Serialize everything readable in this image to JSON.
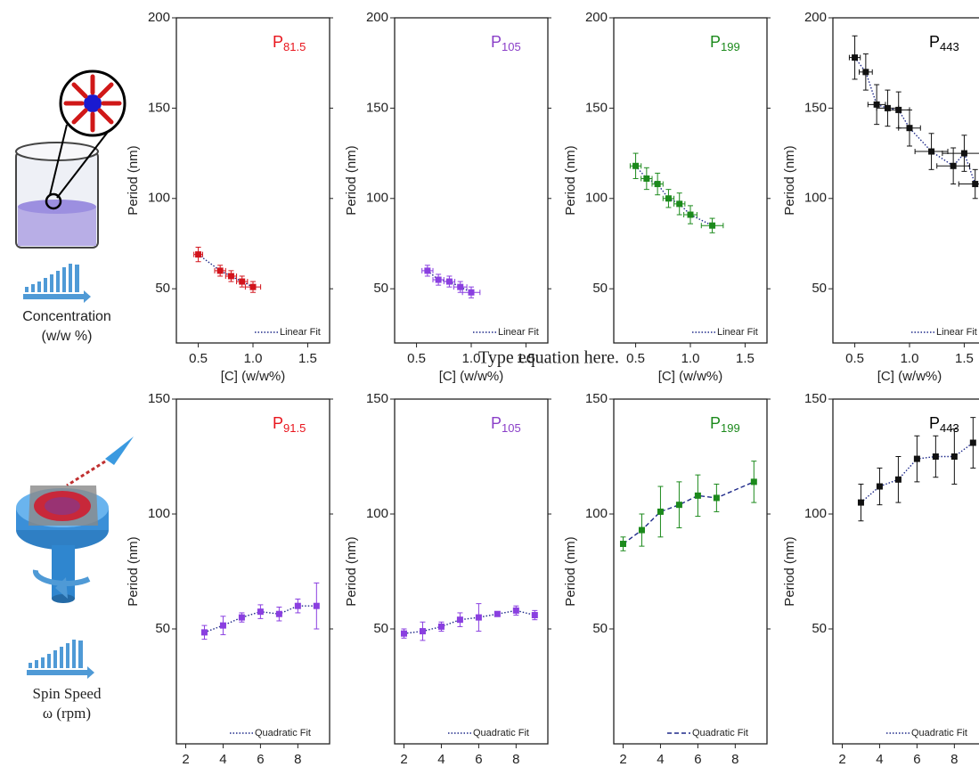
{
  "chart_data": [
    {
      "type": "scatter",
      "title": [
        "P",
        "81.5"
      ],
      "title_color": "#e8141c",
      "color": "#d2141c",
      "x_label": "[C] (w/w%)",
      "y_label": "Period (nm)",
      "fit_label": "Linear Fit",
      "fit_style": "dotted",
      "fit_color": "#1f2a8a",
      "x": [
        0.5,
        0.7,
        0.8,
        0.9,
        1.0
      ],
      "values": [
        69,
        60,
        57,
        54,
        51
      ],
      "xerr": [
        0.04,
        0.05,
        0.05,
        0.05,
        0.07
      ],
      "yerr": [
        4,
        3,
        3,
        3,
        3
      ],
      "xlim": [
        0.3,
        1.7
      ],
      "xticks": [
        0.5,
        {
          "value": 1,
          "label": "1.0"
        },
        1.5
      ],
      "ylim": [
        20,
        200
      ],
      "yticks": [
        50,
        100,
        150,
        200
      ]
    },
    {
      "type": "scatter",
      "title": [
        "P",
        "105"
      ],
      "title_color": "#8a3fc8",
      "color": "#8a3fe0",
      "x_label": "[C] (w/w%)",
      "y_label": "Period (nm)",
      "fit_label": "Linear Fit",
      "fit_style": "dotted",
      "fit_color": "#1f2a8a",
      "x": [
        0.6,
        0.7,
        0.8,
        0.9,
        1.0
      ],
      "values": [
        60,
        55,
        54,
        51,
        48
      ],
      "xerr": [
        0.05,
        0.05,
        0.05,
        0.06,
        0.08
      ],
      "yerr": [
        3,
        3,
        3,
        3,
        3
      ],
      "xlim": [
        0.3,
        1.7
      ],
      "xticks": [
        0.5,
        {
          "value": 1,
          "label": "1.0"
        },
        1.5
      ],
      "ylim": [
        20,
        200
      ],
      "yticks": [
        50,
        100,
        150,
        200
      ]
    },
    {
      "type": "scatter",
      "title": [
        "P",
        "199"
      ],
      "title_color": "#1c8a1c",
      "color": "#1c8a1c",
      "x_label": "[C] (w/w%)",
      "y_label": "Period (nm)",
      "fit_label": "Linear Fit",
      "fit_style": "dotted",
      "fit_color": "#1f2a8a",
      "x": [
        0.5,
        0.6,
        0.7,
        0.8,
        0.9,
        1.0,
        1.2
      ],
      "values": [
        118,
        111,
        108,
        100,
        97,
        91,
        85
      ],
      "xerr": [
        0.05,
        0.05,
        0.05,
        0.05,
        0.05,
        0.06,
        0.1
      ],
      "yerr": [
        7,
        6,
        6,
        5,
        6,
        5,
        4
      ],
      "xlim": [
        0.3,
        1.7
      ],
      "xticks": [
        0.5,
        {
          "value": 1,
          "label": "1.0"
        },
        1.5
      ],
      "ylim": [
        20,
        200
      ],
      "yticks": [
        50,
        100,
        150,
        200
      ]
    },
    {
      "type": "scatter",
      "title": [
        "P",
        "443"
      ],
      "title_color": "#000000",
      "color": "#111111",
      "x_label": "[C] (w/w%)",
      "y_label": "Period (nm)",
      "fit_label": "Linear Fit",
      "fit_style": "dotted",
      "fit_color": "#1f2a8a",
      "x": [
        0.5,
        0.6,
        0.7,
        0.8,
        0.9,
        1.0,
        1.2,
        1.4,
        1.5,
        1.6
      ],
      "values": [
        178,
        170,
        152,
        150,
        149,
        139,
        126,
        118,
        125,
        108
      ],
      "xerr": [
        0.05,
        0.06,
        0.08,
        0.1,
        0.1,
        0.1,
        0.15,
        0.15,
        0.2,
        0.15
      ],
      "yerr": [
        12,
        10,
        11,
        10,
        10,
        10,
        10,
        10,
        10,
        8
      ],
      "xlim": [
        0.3,
        1.7
      ],
      "xticks": [
        0.5,
        {
          "value": 1,
          "label": "1.0"
        },
        1.5
      ],
      "ylim": [
        20,
        200
      ],
      "yticks": [
        50,
        100,
        150,
        200
      ]
    },
    {
      "type": "scatter",
      "title": [
        "P",
        "91.5"
      ],
      "title_color": "#e8141c",
      "color": "#8a3fe0",
      "x_label": "ω (rpm)",
      "y_label": "Period (nm)",
      "fit_label": "Quadratic Fit",
      "fit_style": "dotted",
      "fit_color": "#1f2a8a",
      "x": [
        3,
        4,
        5,
        6,
        7,
        8,
        9
      ],
      "values": [
        48.5,
        51.5,
        55,
        57.5,
        56.5,
        60,
        60
      ],
      "yerr": [
        3,
        4,
        2,
        3,
        3,
        3,
        10
      ],
      "xlim": [
        1.5,
        9.7
      ],
      "xticks": [
        2,
        4,
        6,
        8
      ],
      "ylim": [
        0,
        150
      ],
      "yticks": [
        50,
        100,
        150
      ]
    },
    {
      "type": "scatter",
      "title": [
        "P",
        "105"
      ],
      "title_color": "#8a3fc8",
      "color": "#8a3fe0",
      "x_label": "ω (rpm)",
      "y_label": "Period (nm)",
      "fit_label": "Quadratic Fit",
      "fit_style": "dotted",
      "fit_color": "#1f2a8a",
      "x": [
        2,
        3,
        4,
        5,
        6,
        7,
        8,
        9
      ],
      "values": [
        48,
        49,
        51,
        54,
        55,
        56.5,
        58,
        56
      ],
      "yerr": [
        2,
        4,
        2,
        3,
        6,
        1,
        2,
        2
      ],
      "xlim": [
        1.5,
        9.7
      ],
      "xticks": [
        2,
        4,
        6,
        8
      ],
      "ylim": [
        0,
        150
      ],
      "yticks": [
        50,
        100,
        150
      ]
    },
    {
      "type": "scatter",
      "title": [
        "P",
        "199"
      ],
      "title_color": "#1c8a1c",
      "color": "#1c8a1c",
      "x_label": "ω (rpm)",
      "y_label": "Period (nm)",
      "fit_label": "Quadratic Fit",
      "fit_style": "dashed",
      "fit_color": "#1f2a8a",
      "x": [
        2,
        3,
        4,
        5,
        6,
        7,
        9
      ],
      "values": [
        87,
        93,
        101,
        104,
        108,
        107,
        114
      ],
      "yerr": [
        3,
        7,
        11,
        10,
        9,
        6,
        9
      ],
      "xlim": [
        1.5,
        9.7
      ],
      "xticks": [
        2,
        4,
        6,
        8
      ],
      "ylim": [
        0,
        150
      ],
      "yticks": [
        50,
        100,
        150
      ]
    },
    {
      "type": "scatter",
      "title": [
        "P",
        "443"
      ],
      "title_color": "#000000",
      "color": "#111111",
      "x_label": "ω (rpm)",
      "y_label": "Period (nm)",
      "fit_label": "Quadratic Fit",
      "fit_style": "dotted",
      "fit_color": "#1f2a8a",
      "x": [
        3,
        4,
        5,
        6,
        7,
        8,
        9
      ],
      "values": [
        105,
        112,
        115,
        124,
        125,
        125,
        131
      ],
      "yerr": [
        8,
        8,
        10,
        10,
        9,
        12,
        11
      ],
      "xlim": [
        1.5,
        9.7
      ],
      "xticks": [
        2,
        4,
        6,
        8
      ],
      "ylim": [
        0,
        150
      ],
      "yticks": [
        50,
        100,
        150
      ]
    }
  ],
  "annotation": "Type equation here.",
  "left_labels": {
    "top": [
      "Concentration",
      "(w/w %)"
    ],
    "bottom": [
      "Spin Speed",
      "ω (rpm)"
    ]
  }
}
